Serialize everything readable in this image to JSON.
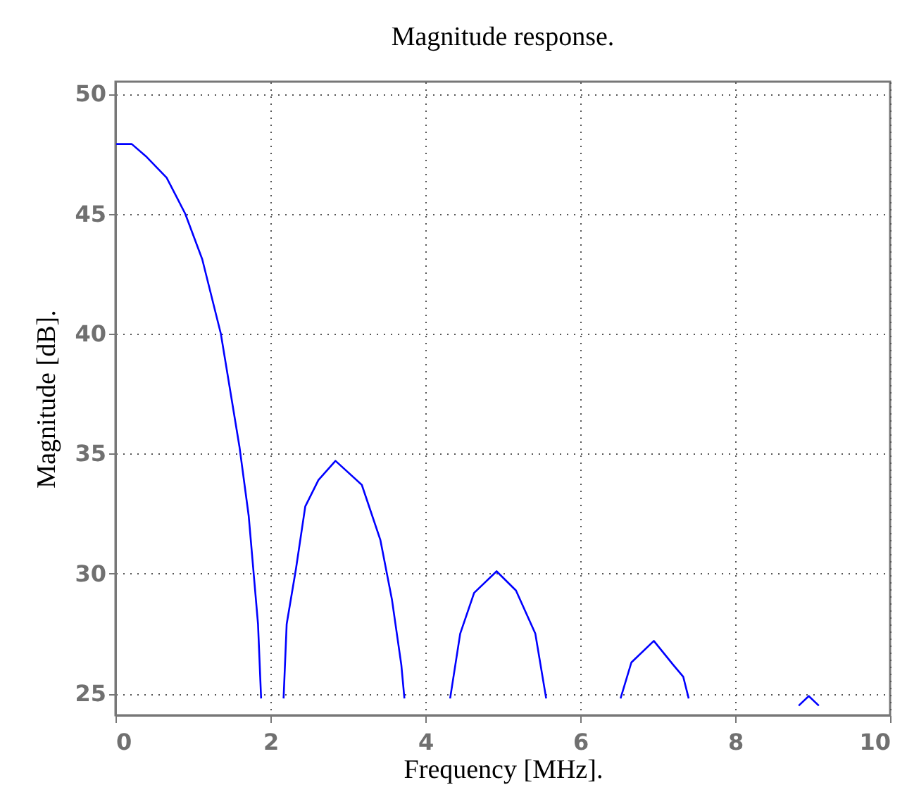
{
  "chart_data": {
    "type": "line",
    "title": "Magnitude response.",
    "xlabel": "Frequency [MHz].",
    "ylabel": "Magnitude [dB].",
    "x": [
      0.01,
      0.21,
      0.39,
      0.66,
      0.9,
      1.12,
      1.36,
      1.6,
      1.72,
      1.84,
      1.88,
      null,
      2.17,
      2.21,
      2.33,
      2.45,
      2.62,
      2.84,
      3.18,
      3.42,
      3.57,
      3.69,
      3.73,
      null,
      4.32,
      4.45,
      4.63,
      4.92,
      5.17,
      5.42,
      5.56,
      null,
      6.52,
      6.66,
      6.95,
      7.2,
      7.33,
      7.4,
      null,
      8.82,
      8.95,
      9.08
    ],
    "series": [
      {
        "color": "#0000ff",
        "values": [
          47.9,
          47.9,
          47.4,
          46.5,
          45.0,
          43.1,
          40.0,
          35.3,
          32.4,
          27.9,
          24.8,
          null,
          24.8,
          27.9,
          30.2,
          32.8,
          33.9,
          34.7,
          33.7,
          31.4,
          28.9,
          26.2,
          24.8,
          null,
          24.8,
          27.5,
          29.2,
          30.1,
          29.3,
          27.5,
          24.8,
          null,
          24.8,
          26.3,
          27.2,
          26.2,
          25.7,
          24.8,
          null,
          24.5,
          24.9,
          24.5
        ]
      }
    ],
    "xlim": [
      0,
      10
    ],
    "ylim": [
      24.1,
      50.5
    ],
    "xticks": [
      0,
      2,
      4,
      6,
      8,
      10
    ],
    "yticks": [
      25,
      30,
      35,
      40,
      45,
      50
    ],
    "grid": true,
    "line_style": "solid",
    "marker": "none"
  }
}
